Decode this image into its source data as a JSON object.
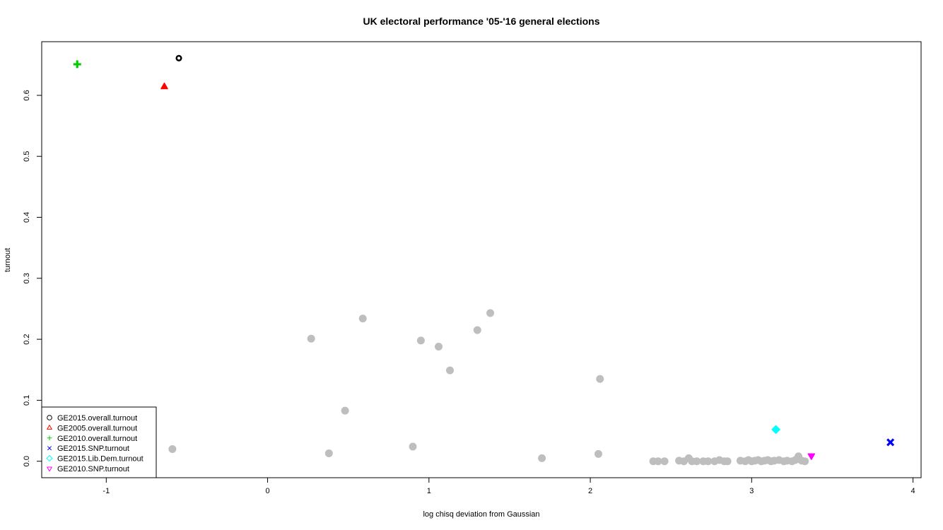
{
  "chart_data": {
    "type": "scatter",
    "title": "UK electoral performance '05-'16 general elections",
    "xlabel": "log chisq deviation from Gaussian",
    "ylabel": "turnout",
    "xlim": [
      -1.4,
      4.05
    ],
    "ylim": [
      -0.027,
      0.688
    ],
    "x_ticks": [
      "-1",
      "0",
      "1",
      "2",
      "3",
      "4"
    ],
    "y_ticks": [
      "0.0",
      "0.1",
      "0.2",
      "0.3",
      "0.4",
      "0.5",
      "0.6"
    ],
    "grid": false,
    "legend_position": "bottom-left",
    "background_points": {
      "color": "#bebebe",
      "points": [
        [
          -0.59,
          0.02
        ],
        [
          0.27,
          0.201
        ],
        [
          0.38,
          0.013
        ],
        [
          0.48,
          0.083
        ],
        [
          0.59,
          0.234
        ],
        [
          0.9,
          0.024
        ],
        [
          0.95,
          0.198
        ],
        [
          1.06,
          0.188
        ],
        [
          1.13,
          0.149
        ],
        [
          1.3,
          0.215
        ],
        [
          1.38,
          0.243
        ],
        [
          1.7,
          0.005
        ],
        [
          2.05,
          0.012
        ],
        [
          2.06,
          0.135
        ],
        [
          2.39,
          0.0
        ],
        [
          2.42,
          0.0
        ],
        [
          2.46,
          0.0
        ],
        [
          2.55,
          0.001
        ],
        [
          2.58,
          0.0
        ],
        [
          2.61,
          0.005
        ],
        [
          2.63,
          0.0
        ],
        [
          2.66,
          0.0
        ],
        [
          2.7,
          0.0
        ],
        [
          2.73,
          0.0
        ],
        [
          2.77,
          0.0
        ],
        [
          2.8,
          0.002
        ],
        [
          2.83,
          0.0
        ],
        [
          2.85,
          0.0
        ],
        [
          2.93,
          0.001
        ],
        [
          2.96,
          0.0
        ],
        [
          2.98,
          0.002
        ],
        [
          3.0,
          0.0
        ],
        [
          3.02,
          0.001
        ],
        [
          3.04,
          0.002
        ],
        [
          3.06,
          0.0
        ],
        [
          3.08,
          0.001
        ],
        [
          3.1,
          0.002
        ],
        [
          3.12,
          0.0
        ],
        [
          3.14,
          0.001
        ],
        [
          3.17,
          0.002
        ],
        [
          3.2,
          0.0
        ],
        [
          3.22,
          0.001
        ],
        [
          3.25,
          0.0
        ],
        [
          3.27,
          0.002
        ],
        [
          3.29,
          0.008
        ],
        [
          3.31,
          0.001
        ],
        [
          3.33,
          0.0
        ]
      ]
    },
    "series": [
      {
        "name": "GE2015.overall.turnout",
        "color": "#000000",
        "marker": "circle",
        "x": [
          -0.55
        ],
        "y": [
          0.661
        ]
      },
      {
        "name": "GE2005.overall.turnout",
        "color": "#ff0000",
        "marker": "triangle-up",
        "x": [
          -0.64
        ],
        "y": [
          0.614
        ]
      },
      {
        "name": "GE2010.overall.turnout",
        "color": "#00cd00",
        "marker": "plus",
        "x": [
          -1.18
        ],
        "y": [
          0.651
        ]
      },
      {
        "name": "GE2015.SNP.turnout",
        "color": "#0000ff",
        "marker": "x",
        "x": [
          3.86
        ],
        "y": [
          0.031
        ]
      },
      {
        "name": "GE2015.Lib.Dem.turnout",
        "color": "#00ffff",
        "marker": "diamond",
        "x": [
          3.15
        ],
        "y": [
          0.052
        ]
      },
      {
        "name": "GE2010.SNP.turnout",
        "color": "#ff00ff",
        "marker": "triangle-down",
        "x": [
          3.37
        ],
        "y": [
          0.009
        ]
      }
    ]
  }
}
